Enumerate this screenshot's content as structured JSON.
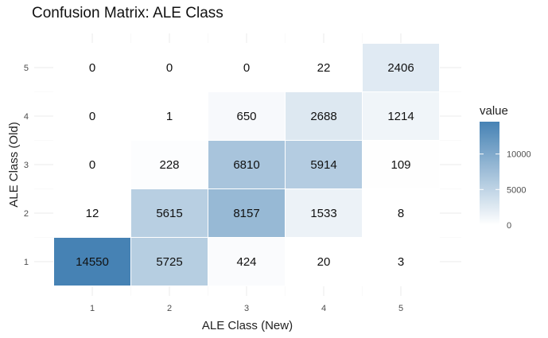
{
  "chart_data": {
    "type": "heatmap",
    "title": "Confusion Matrix: ALE Class",
    "xlabel": "ALE Class (New)",
    "ylabel": "ALE Class (Old)",
    "x_categories": [
      "1",
      "2",
      "3",
      "4",
      "5"
    ],
    "y_categories": [
      "1",
      "2",
      "3",
      "4",
      "5"
    ],
    "matrix": [
      [
        14550,
        5725,
        424,
        20,
        3
      ],
      [
        12,
        5615,
        8157,
        1533,
        8
      ],
      [
        0,
        228,
        6810,
        5914,
        109
      ],
      [
        0,
        1,
        650,
        2688,
        1214
      ],
      [
        0,
        0,
        0,
        22,
        2406
      ]
    ],
    "legend": {
      "title": "value",
      "ticks": [
        0,
        5000,
        10000
      ],
      "tick_labels": [
        "0",
        "5000",
        "10000"
      ],
      "range": [
        0,
        14550
      ],
      "low_color": "#ffffff",
      "high_color": "#4682b4"
    },
    "grid": true,
    "legend_position": "right"
  }
}
